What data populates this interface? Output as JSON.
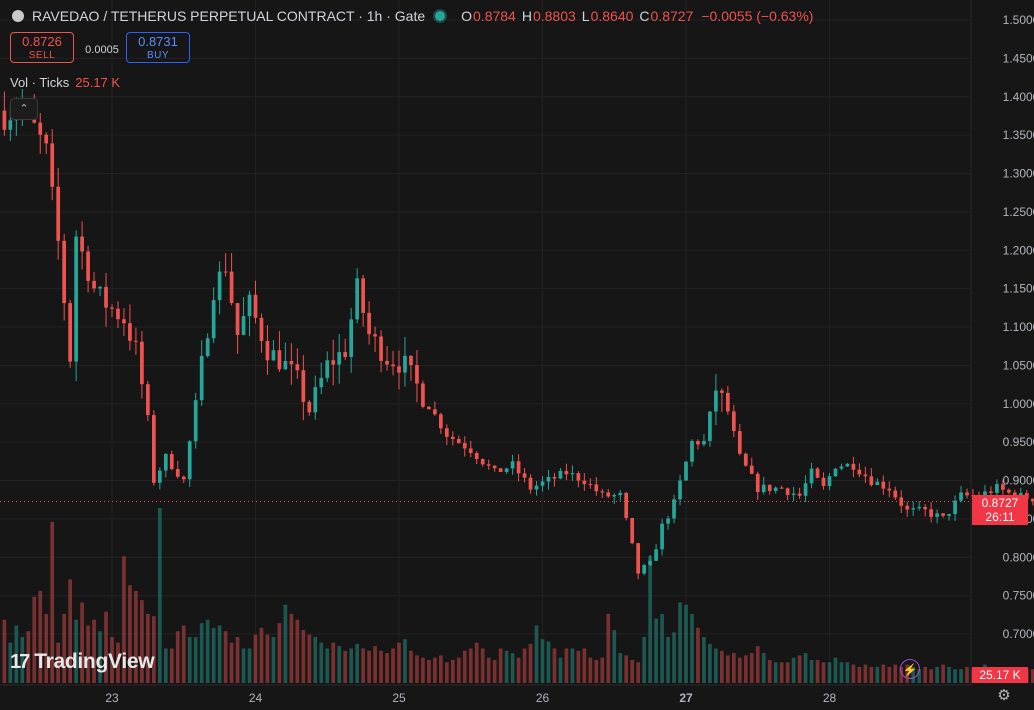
{
  "header": {
    "symbol_title": "RAVEDAO / TETHERUS PERPETUAL CONTRACT · 1h · Gate",
    "ohlc": {
      "o_label": "O",
      "o": "0.8784",
      "h_label": "H",
      "h": "0.8803",
      "l_label": "L",
      "l": "0.8640",
      "c_label": "C",
      "c": "0.8727",
      "change": "−0.0055 (−0.63%)"
    },
    "colors": {
      "up": "#26a69a",
      "down": "#ef5350"
    }
  },
  "trade": {
    "sell_price": "0.8726",
    "sell_label": "SELL",
    "spread": "0.0005",
    "buy_price": "0.8731",
    "buy_label": "BUY"
  },
  "volume_legend": {
    "label": "Vol · Ticks",
    "value": "25.17 K"
  },
  "collapse_icon": "chevron-up-icon",
  "brand": {
    "name": "TradingView"
  },
  "last_price_tag": {
    "price": "0.8727",
    "countdown": "26:11"
  },
  "volume_tag": "25.17 K",
  "chart_data": {
    "type": "candlestick",
    "timeframe": "1h",
    "y_axis": {
      "ticks": [
        "1.5000",
        "1.4500",
        "1.4000",
        "1.3500",
        "1.3000",
        "1.2500",
        "1.2000",
        "1.1500",
        "1.1000",
        "1.0500",
        "1.0000",
        "0.9500",
        "0.9000",
        "0.8500",
        "0.8000",
        "0.7500",
        "0.7000"
      ],
      "ylim": [
        0.66,
        1.515
      ]
    },
    "x_axis": {
      "ticks": [
        {
          "label": "23",
          "day": 1,
          "bold": false
        },
        {
          "label": "24",
          "day": 2,
          "bold": false
        },
        {
          "label": "25",
          "day": 3,
          "bold": false
        },
        {
          "label": "26",
          "day": 4,
          "bold": false
        },
        {
          "label": "27",
          "day": 5,
          "bold": true
        },
        {
          "label": "28",
          "day": 6,
          "bold": false
        }
      ],
      "start_day_offset": -0.75
    },
    "last_price": 0.8727,
    "anchors": [
      [
        0,
        1.372
      ],
      [
        3,
        1.39
      ],
      [
        5,
        1.36
      ],
      [
        7,
        1.33
      ],
      [
        9,
        1.21
      ],
      [
        11,
        1.06
      ],
      [
        12,
        1.22
      ],
      [
        15,
        1.15
      ],
      [
        17,
        1.13
      ],
      [
        20,
        1.11
      ],
      [
        22,
        1.07
      ],
      [
        24,
        0.98
      ],
      [
        25,
        0.9
      ],
      [
        27,
        0.93
      ],
      [
        30,
        0.9
      ],
      [
        32,
        1.0
      ],
      [
        35,
        1.15
      ],
      [
        37,
        1.18
      ],
      [
        39,
        1.09
      ],
      [
        41,
        1.13
      ],
      [
        44,
        1.07
      ],
      [
        47,
        1.05
      ],
      [
        49,
        1.03
      ],
      [
        51,
        0.99
      ],
      [
        54,
        1.05
      ],
      [
        57,
        1.07
      ],
      [
        59,
        1.15
      ],
      [
        61,
        1.09
      ],
      [
        64,
        1.06
      ],
      [
        67,
        1.05
      ],
      [
        70,
        1.01
      ],
      [
        74,
        0.96
      ],
      [
        78,
        0.94
      ],
      [
        82,
        0.91
      ],
      [
        85,
        0.92
      ],
      [
        88,
        0.89
      ],
      [
        91,
        0.9
      ],
      [
        94,
        0.91
      ],
      [
        97,
        0.9
      ],
      [
        100,
        0.88
      ],
      [
        103,
        0.88
      ],
      [
        106,
        0.78
      ],
      [
        108,
        0.79
      ],
      [
        110,
        0.84
      ],
      [
        112,
        0.87
      ],
      [
        115,
        0.95
      ],
      [
        117,
        0.95
      ],
      [
        119,
        1.02
      ],
      [
        121,
        0.99
      ],
      [
        123,
        0.93
      ],
      [
        126,
        0.89
      ],
      [
        130,
        0.89
      ],
      [
        133,
        0.88
      ],
      [
        135,
        0.91
      ],
      [
        137,
        0.89
      ],
      [
        139,
        0.92
      ],
      [
        142,
        0.92
      ],
      [
        145,
        0.9
      ],
      [
        148,
        0.89
      ],
      [
        151,
        0.86
      ],
      [
        154,
        0.86
      ],
      [
        157,
        0.85
      ],
      [
        160,
        0.88
      ],
      [
        163,
        0.88
      ],
      [
        166,
        0.89
      ],
      [
        169,
        0.88
      ],
      [
        172,
        0.877
      ],
      [
        175,
        0.873
      ],
      [
        178,
        0.885
      ],
      [
        181,
        0.8727
      ]
    ],
    "volume": {
      "levels": [
        55,
        35,
        50,
        40,
        45,
        75,
        80,
        60,
        140,
        35,
        60,
        90,
        55,
        70,
        50,
        55,
        45,
        62,
        40,
        35,
        110,
        85,
        80,
        72,
        60,
        58,
        152,
        30,
        30,
        45,
        50,
        40,
        40,
        52,
        55,
        48,
        50,
        45,
        35,
        40,
        30,
        30,
        42,
        48,
        42,
        40,
        52,
        68,
        60,
        55,
        46,
        42,
        40,
        35,
        30,
        35,
        32,
        28,
        30,
        34,
        30,
        28,
        32,
        28,
        26,
        30,
        35,
        38,
        28,
        24,
        22,
        20,
        22,
        24,
        18,
        20,
        22,
        28,
        30,
        35,
        30,
        22,
        20,
        30,
        28,
        26,
        22,
        30,
        34,
        50,
        38,
        36,
        30,
        22,
        30,
        30,
        28,
        30,
        22,
        20,
        22,
        60,
        46,
        26,
        24,
        20,
        18,
        40,
        110,
        56,
        60,
        40,
        44,
        70,
        68,
        60,
        48,
        40,
        34,
        30,
        28,
        24,
        26,
        22,
        24,
        26,
        32,
        26,
        20,
        18,
        18,
        18,
        22,
        24,
        26,
        20,
        20,
        18,
        18,
        22,
        18,
        18,
        16,
        14,
        16,
        14,
        14,
        16,
        14,
        16,
        14,
        16,
        14,
        12,
        14,
        12,
        14,
        16,
        14,
        12,
        12,
        14,
        12,
        12,
        16,
        14,
        12,
        12,
        12,
        10,
        12,
        12,
        12,
        14,
        12,
        14,
        12,
        12,
        14,
        12,
        18,
        20,
        24,
        20,
        12
      ],
      "last_value_label": "25.17 K"
    }
  }
}
